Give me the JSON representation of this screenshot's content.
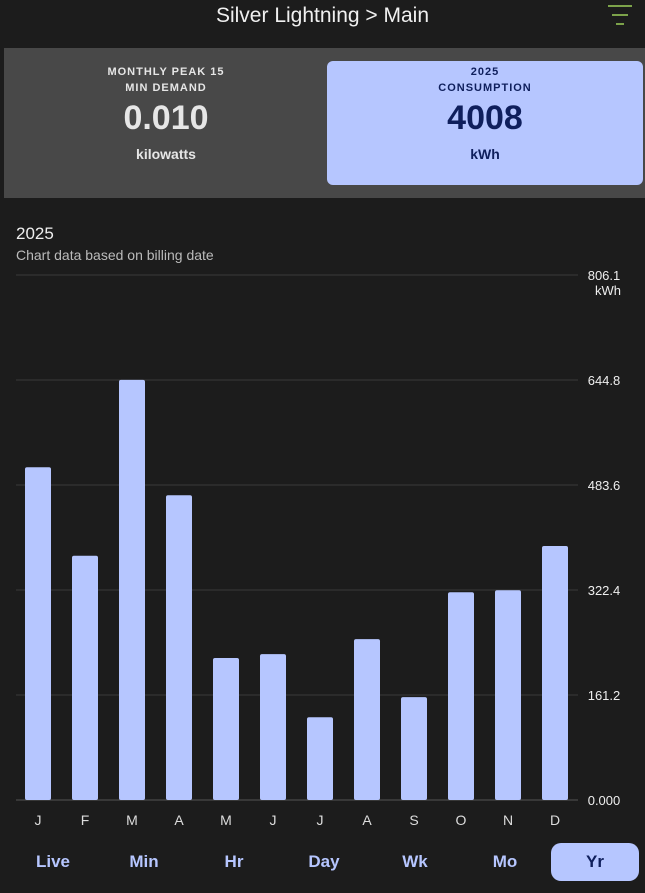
{
  "header": {
    "title": "Silver Lightning > Main",
    "menu_icon": "filter-list-icon"
  },
  "cards": [
    {
      "label_line1": "MONTHLY PEAK 15",
      "label_line2": "MIN DEMAND",
      "value": "0.010",
      "unit": "kilowatts"
    },
    {
      "label_line1": "2025",
      "label_line2": "CONSUMPTION",
      "value": "4008",
      "unit": "kWh"
    }
  ],
  "chart_data": {
    "type": "bar",
    "title": "2025",
    "subtitle": "Chart data based on billing date",
    "categories": [
      "J",
      "F",
      "M",
      "A",
      "M",
      "J",
      "J",
      "A",
      "S",
      "O",
      "N",
      "D"
    ],
    "values": [
      511,
      375,
      645,
      468,
      218,
      224,
      127,
      247,
      158,
      319,
      322,
      390
    ],
    "ylabel": "kWh",
    "yticks": [
      "0.000",
      "161.2",
      "322.4",
      "483.6",
      "644.8",
      "806.1"
    ],
    "ylim": [
      0,
      806.1
    ],
    "grid": true,
    "bar_color": "#b6c6ff"
  },
  "tabs": [
    {
      "label": "Live"
    },
    {
      "label": "Min"
    },
    {
      "label": "Hr"
    },
    {
      "label": "Day"
    },
    {
      "label": "Wk"
    },
    {
      "label": "Mo"
    },
    {
      "label": "Yr",
      "active": true
    }
  ]
}
